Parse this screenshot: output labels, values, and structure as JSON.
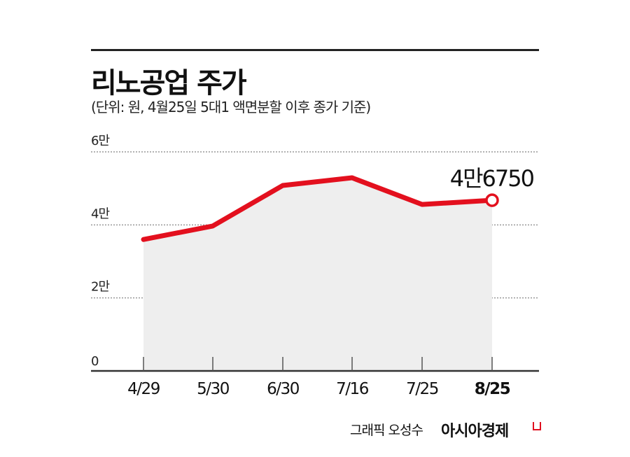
{
  "header": {
    "title": "리노공업 주가",
    "subtitle": "(단위: 원, 4월25일 5대1 액면분할 이후 종가 기준)"
  },
  "footer": {
    "credit": "그래픽 오성수",
    "brand": "아시아경제"
  },
  "colors": {
    "line": "#e3101e",
    "area": "#eeeeee",
    "grid": "#999999",
    "axis": "#333333",
    "text": "#111111"
  },
  "chart_data": {
    "type": "line",
    "title": "리노공업 주가",
    "subtitle": "(단위: 원, 4월25일 5대1 액면분할 이후 종가 기준)",
    "xlabel": "",
    "ylabel": "",
    "categories": [
      "4/29",
      "5/30",
      "6/30",
      "7/16",
      "7/25",
      "8/25"
    ],
    "series": [
      {
        "name": "리노공업 종가",
        "values": [
          36000,
          39700,
          50800,
          52900,
          45600,
          46750
        ]
      }
    ],
    "y_ticks": [
      {
        "value": 0,
        "label": "0"
      },
      {
        "value": 20000,
        "label": "2만"
      },
      {
        "value": 40000,
        "label": "4만"
      },
      {
        "value": 60000,
        "label": "6만"
      }
    ],
    "ylim": [
      0,
      60000
    ],
    "grid": true,
    "annotations": [
      {
        "x": "8/25",
        "value": 46750,
        "label": "4만6750"
      }
    ],
    "legend": "none"
  }
}
